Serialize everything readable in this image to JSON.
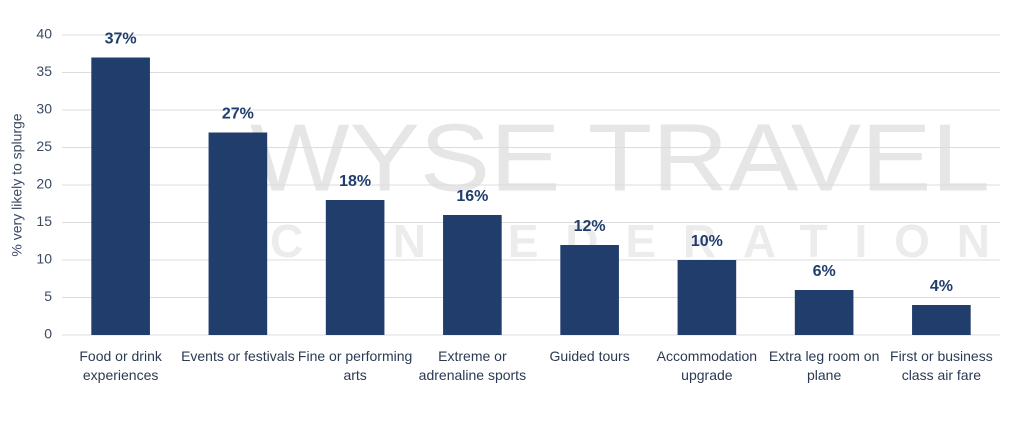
{
  "chart_data": {
    "type": "bar",
    "y_label": "% very likely to splurge",
    "categories": [
      "Food or drink experiences",
      "Events or festivals",
      "Fine or performing arts",
      "Extreme or adrenaline sports",
      "Guided tours",
      "Accommodation upgrade",
      "Extra leg room on plane",
      "First or business class air fare"
    ],
    "values": [
      37,
      27,
      18,
      16,
      12,
      10,
      6,
      4
    ],
    "value_labels": [
      "37%",
      "27%",
      "18%",
      "16%",
      "12%",
      "10%",
      "6%",
      "4%"
    ],
    "color": "#213d6b",
    "ylim": [
      0,
      40
    ],
    "yticks": [
      0,
      5,
      10,
      15,
      20,
      25,
      30,
      35,
      40
    ],
    "grid": true,
    "watermark": [
      "WYSE TRAVEL",
      "CONFEDERATION"
    ]
  }
}
